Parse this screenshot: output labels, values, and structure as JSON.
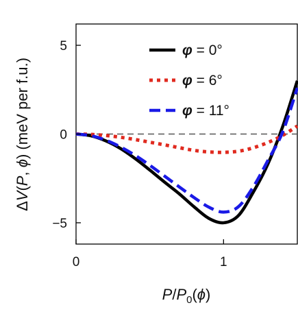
{
  "chart_data": {
    "type": "line",
    "xlabel": "P/P0(φ)",
    "ylabel": "ΔV(P, φ) (meV per f.u.)",
    "xlim": [
      0,
      1.5
    ],
    "ylim": [
      -6.2,
      6.2
    ],
    "xticks": [
      {
        "value": 0,
        "label": "0"
      },
      {
        "value": 1,
        "label": "1"
      }
    ],
    "yticks": [
      {
        "value": 5,
        "label": "5"
      },
      {
        "value": 0,
        "label": "0"
      },
      {
        "value": -5,
        "label": "−5"
      }
    ],
    "zero_line": true,
    "legend_position": "top-center",
    "series": [
      {
        "name": "φ = 0°",
        "symbol": "φ",
        "angle_text": " = 0°",
        "color": "#000000",
        "style": "solid",
        "x": [
          0,
          0.1,
          0.2,
          0.3,
          0.4,
          0.5,
          0.6,
          0.7,
          0.8,
          0.9,
          1.0,
          1.1,
          1.2,
          1.3,
          1.4,
          1.5
        ],
        "y": [
          0,
          -0.1,
          -0.38,
          -0.81,
          -1.38,
          -2.03,
          -2.71,
          -3.37,
          -4.1,
          -4.75,
          -5.0,
          -4.6,
          -3.3,
          -1.7,
          0.4,
          3.0
        ]
      },
      {
        "name": "φ = 6°",
        "symbol": "φ",
        "angle_text": " = 6°",
        "color": "#e02a1f",
        "style": "dotted",
        "x": [
          0,
          0.1,
          0.2,
          0.3,
          0.4,
          0.5,
          0.6,
          0.7,
          0.8,
          0.9,
          1.0,
          1.1,
          1.2,
          1.3,
          1.4,
          1.5
        ],
        "y": [
          0,
          -0.02,
          -0.08,
          -0.18,
          -0.31,
          -0.46,
          -0.61,
          -0.77,
          -0.92,
          -1.01,
          -1.03,
          -0.97,
          -0.78,
          -0.48,
          -0.08,
          0.45
        ]
      },
      {
        "name": "φ = 11°",
        "symbol": "φ",
        "angle_text": " = 11°",
        "color": "#1a1ae6",
        "style": "dashed",
        "x": [
          0,
          0.1,
          0.2,
          0.3,
          0.4,
          0.5,
          0.6,
          0.7,
          0.8,
          0.9,
          1.0,
          1.1,
          1.2,
          1.3,
          1.4,
          1.5
        ],
        "y": [
          0,
          -0.09,
          -0.34,
          -0.72,
          -1.2,
          -1.76,
          -2.37,
          -2.98,
          -3.58,
          -4.12,
          -4.4,
          -4.1,
          -3.0,
          -1.5,
          0.1,
          2.6
        ]
      }
    ]
  }
}
